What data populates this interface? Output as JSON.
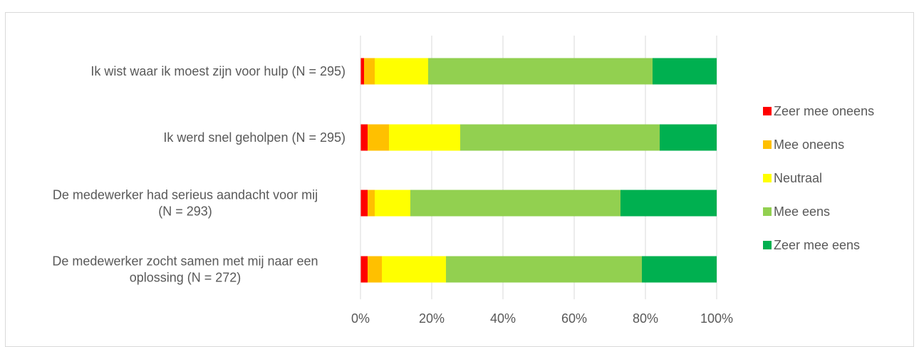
{
  "chart_data": {
    "type": "bar",
    "orientation": "horizontal",
    "stacked": "percent",
    "title": "",
    "xlabel": "",
    "ylabel": "",
    "xlim": [
      0,
      100
    ],
    "x_ticks": [
      "0%",
      "20%",
      "40%",
      "60%",
      "80%",
      "100%"
    ],
    "grid": true,
    "legend_position": "right",
    "categories": [
      [
        "Ik wist waar ik moest zijn voor hulp (N = 295)"
      ],
      [
        "Ik werd snel geholpen (N = 295)"
      ],
      [
        "De medewerker had serieus aandacht voor mij",
        "(N = 293)"
      ],
      [
        "De medewerker zocht samen met mij naar een",
        "oplossing (N = 272)"
      ]
    ],
    "series": [
      {
        "name": "Zeer mee oneens",
        "color": "#ff0000",
        "values": [
          1,
          2,
          2,
          2
        ]
      },
      {
        "name": "Mee oneens",
        "color": "#ffc000",
        "values": [
          3,
          6,
          2,
          4
        ]
      },
      {
        "name": "Neutraal",
        "color": "#ffff00",
        "values": [
          15,
          20,
          10,
          18
        ]
      },
      {
        "name": "Mee eens",
        "color": "#92d050",
        "values": [
          63,
          56,
          59,
          55
        ]
      },
      {
        "name": "Zeer mee eens",
        "color": "#00b050",
        "values": [
          18,
          16,
          27,
          21
        ]
      }
    ]
  }
}
